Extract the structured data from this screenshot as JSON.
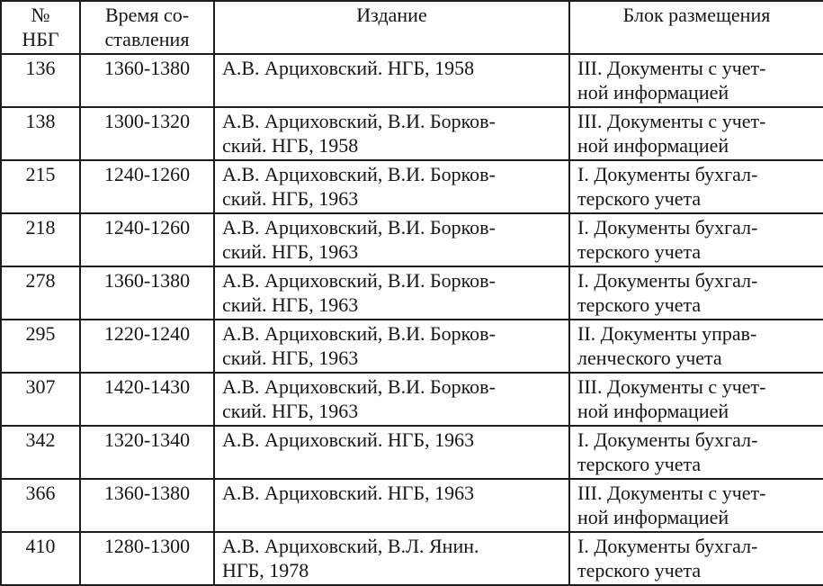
{
  "table": {
    "title_semantic": "Таблица берестяных грамот НБГ",
    "colors": {
      "text": "#161616",
      "border": "#1c1c1c",
      "background": "#ffffff"
    },
    "headers": {
      "number": [
        "№",
        "НБГ"
      ],
      "date": [
        "Время со-",
        "ставления"
      ],
      "edition": "Издание",
      "block": "Блок размещения"
    },
    "rows": [
      {
        "number": "136",
        "date": "1360-1380",
        "edition": [
          "А.В. Арциховский. НГБ, 1958"
        ],
        "block": [
          "III. Документы с учет-",
          "ной информацией"
        ]
      },
      {
        "number": "138",
        "date": "1300-1320",
        "edition": [
          "А.В. Арциховский, В.И. Борков-",
          "ский. НГБ, 1958"
        ],
        "block": [
          "III. Документы с учет-",
          "ной информацией"
        ]
      },
      {
        "number": "215",
        "date": "1240-1260",
        "edition": [
          "А.В. Арциховский, В.И. Борков-",
          "ский. НГБ, 1963"
        ],
        "block": [
          "I. Документы бухгал-",
          "терского учета"
        ]
      },
      {
        "number": "218",
        "date": "1240-1260",
        "edition": [
          "А.В. Арциховский, В.И. Борков-",
          "ский. НГБ, 1963"
        ],
        "block": [
          "I. Документы бухгал-",
          "терского учета"
        ]
      },
      {
        "number": "278",
        "date": "1360-1380",
        "edition": [
          "А.В. Арциховский, В.И. Борков-",
          "ский. НГБ, 1963"
        ],
        "block": [
          "I. Документы бухгал-",
          "терского учета"
        ]
      },
      {
        "number": "295",
        "date": "1220-1240",
        "edition": [
          "А.В. Арциховский, В.И. Борков-",
          "ский. НГБ, 1963"
        ],
        "block": [
          "II. Документы управ-",
          "ленческого учета"
        ]
      },
      {
        "number": "307",
        "date": "1420-1430",
        "edition": [
          "А.В. Арциховский, В.И. Борков-",
          "ский. НГБ, 1963"
        ],
        "block": [
          "III. Документы с учет-",
          "ной информацией"
        ]
      },
      {
        "number": "342",
        "date": "1320-1340",
        "edition": [
          "А.В. Арциховский. НГБ, 1963"
        ],
        "block": [
          "I. Документы бухгал-",
          "терского учета"
        ]
      },
      {
        "number": "366",
        "date": "1360-1380",
        "edition": [
          "А.В. Арциховский. НГБ, 1963"
        ],
        "block": [
          "III. Документы с учет-",
          "ной информацией"
        ]
      },
      {
        "number": "410",
        "date": "1280-1300",
        "edition": [
          "А.В. Арциховский, В.Л. Янин.",
          "НГБ, 1978"
        ],
        "block": [
          "I. Документы бухгал-",
          "терского учета"
        ]
      }
    ]
  }
}
